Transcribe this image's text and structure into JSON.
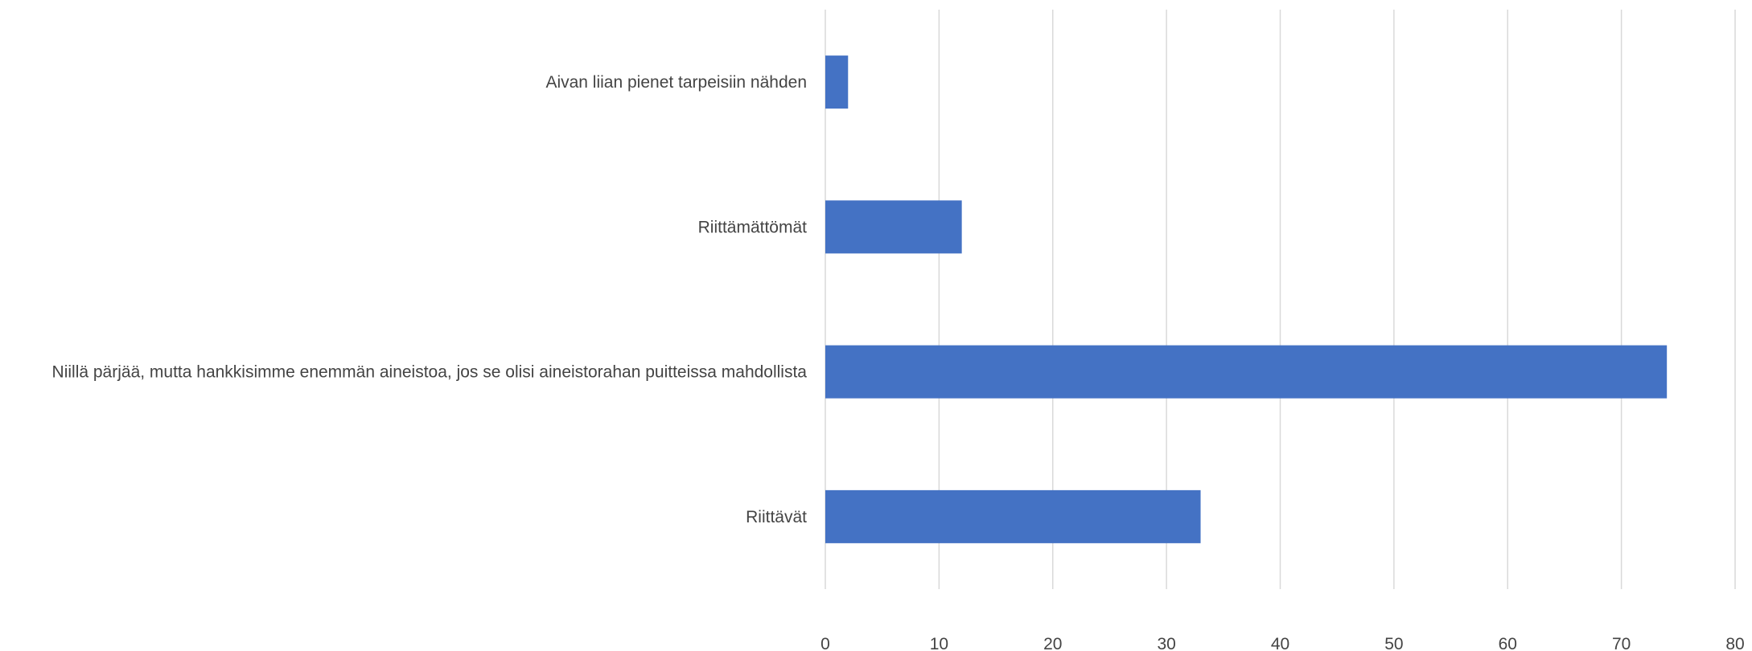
{
  "chart_data": {
    "type": "bar",
    "orientation": "horizontal",
    "categories": [
      "Aivan liian pienet tarpeisiin nähden",
      "Riittämättömät",
      "Niillä pärjää, mutta hankkisimme enemmän aineistoa, jos se olisi aineistorahan puitteissa mahdollista",
      "Riittävät"
    ],
    "values": [
      2,
      12,
      74,
      33
    ],
    "xlim": [
      0,
      80
    ],
    "xticks": [
      0,
      10,
      20,
      30,
      40,
      50,
      60,
      70,
      80
    ],
    "title": "",
    "xlabel": "",
    "ylabel": "",
    "grid": true,
    "legend": "none",
    "bar_color": "#4472c4",
    "grid_color": "#d9d9d9",
    "text_color": "#444444"
  }
}
